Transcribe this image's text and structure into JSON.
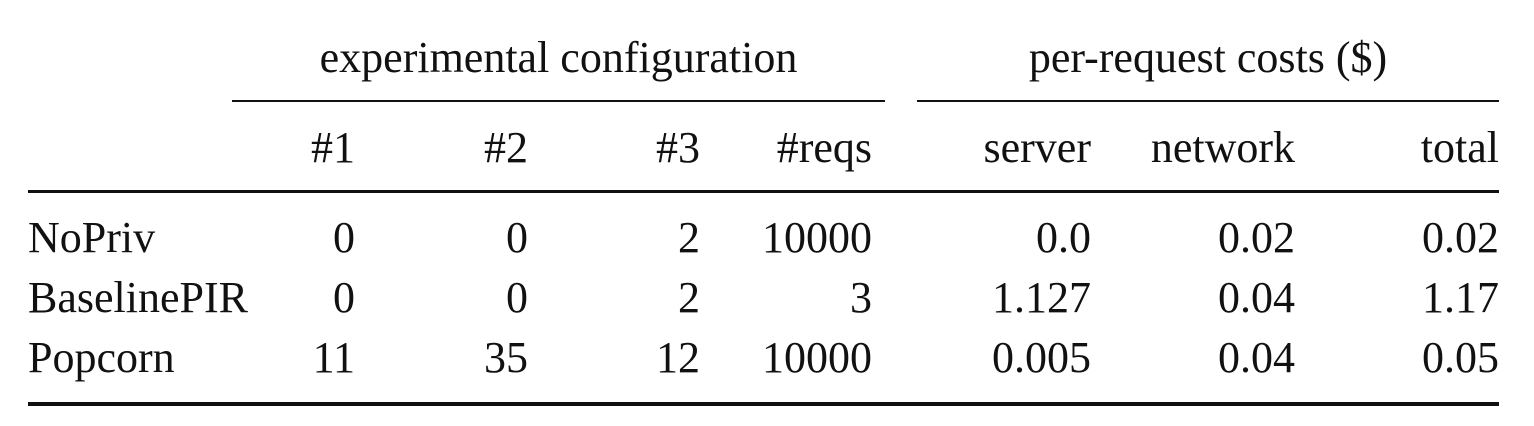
{
  "table": {
    "group_headers": {
      "config": "experimental configuration",
      "costs": "per-request costs ($)"
    },
    "columns": [
      "#1",
      "#2",
      "#3",
      "#reqs",
      "server",
      "network",
      "total"
    ],
    "rows": [
      {
        "label": "NoPriv",
        "values": [
          "0",
          "0",
          "2",
          "10000",
          "0.0",
          "0.02",
          "0.02"
        ]
      },
      {
        "label": "BaselinePIR",
        "values": [
          "0",
          "0",
          "2",
          "3",
          "1.127",
          "0.04",
          "1.17"
        ]
      },
      {
        "label": "Popcorn",
        "values": [
          "11",
          "35",
          "12",
          "10000",
          "0.005",
          "0.04",
          "0.05"
        ]
      }
    ]
  }
}
